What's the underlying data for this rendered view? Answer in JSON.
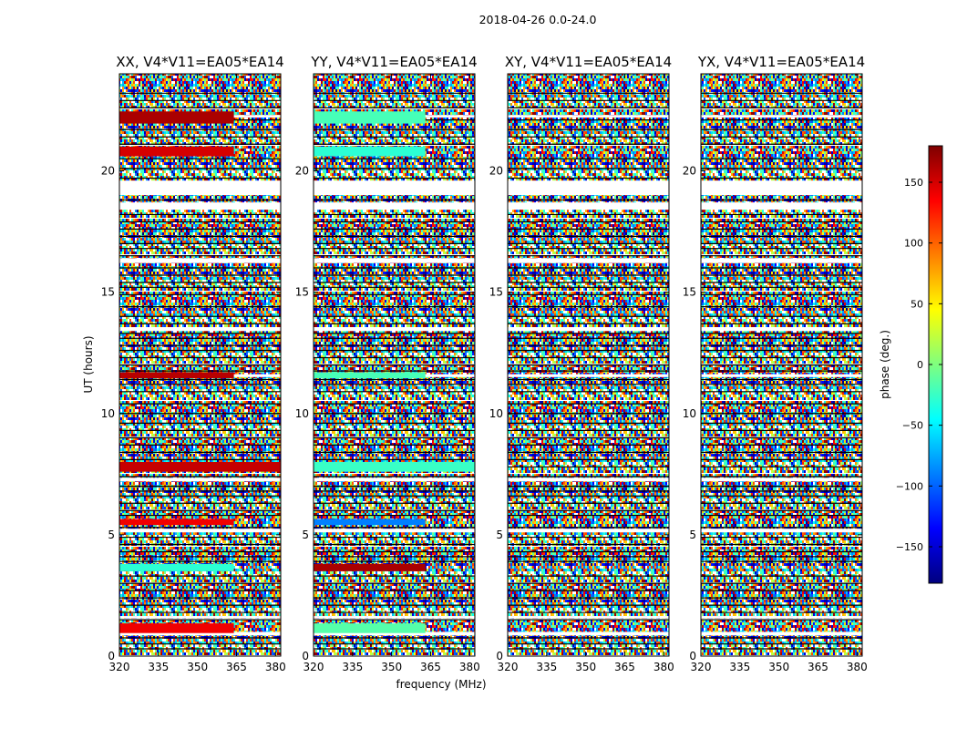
{
  "figure_title": "2018-04-26 0.0-24.0",
  "xlabel": "frequency (MHz)",
  "ylabel": "UT (hours)",
  "colorbar_label": "phase (deg.)",
  "chart_data": {
    "type": "heatmap",
    "title": "2018-04-26 0.0-24.0",
    "xlabel": "frequency (MHz)",
    "ylabel": "UT (hours)",
    "xlim": [
      320,
      382
    ],
    "ylim": [
      0,
      24
    ],
    "xticks": [
      320,
      335,
      350,
      365,
      380
    ],
    "yticks": [
      0,
      5,
      10,
      15,
      20
    ],
    "colorbar": {
      "label": "phase (deg.)",
      "range": [
        -180,
        180
      ],
      "ticks": [
        150,
        100,
        50,
        0,
        -50,
        -100,
        -150
      ],
      "tick_labels": [
        "150",
        "100",
        "50",
        "0",
        "−50",
        "−100",
        "−150"
      ],
      "colormap": "jet",
      "colors": [
        "#00007f",
        "#0000ff",
        "#007fff",
        "#00ffff",
        "#7fff7f",
        "#ffff00",
        "#ff7f00",
        "#ff0000",
        "#7f0000"
      ]
    },
    "panels": [
      {
        "title": "XX, V4*V11=EA05*EA14",
        "coherent_bands": [
          {
            "t0": 0.95,
            "t1": 1.35,
            "phase": 140,
            "f_end": 364
          },
          {
            "t0": 3.5,
            "t1": 3.8,
            "phase": -30,
            "f_end": 364
          },
          {
            "t0": 5.4,
            "t1": 5.65,
            "phase": 140,
            "f_end": 364
          },
          {
            "t0": 7.6,
            "t1": 8.0,
            "phase": 155,
            "f_end": 382
          },
          {
            "t0": 11.45,
            "t1": 11.7,
            "phase": 160,
            "f_end": 364
          },
          {
            "t0": 20.6,
            "t1": 21.0,
            "phase": 150,
            "f_end": 364
          },
          {
            "t0": 21.95,
            "t1": 22.45,
            "phase": 165,
            "f_end": 364
          }
        ]
      },
      {
        "title": "YY, V4*V11=EA05*EA14",
        "coherent_bands": [
          {
            "t0": 0.95,
            "t1": 1.35,
            "phase": -15,
            "f_end": 363
          },
          {
            "t0": 3.5,
            "t1": 3.8,
            "phase": 165,
            "f_end": 363
          },
          {
            "t0": 5.4,
            "t1": 5.65,
            "phase": -90,
            "f_end": 363
          },
          {
            "t0": 7.6,
            "t1": 8.0,
            "phase": -25,
            "f_end": 382
          },
          {
            "t0": 11.45,
            "t1": 11.7,
            "phase": -20,
            "f_end": 363
          },
          {
            "t0": 20.6,
            "t1": 21.0,
            "phase": -30,
            "f_end": 363
          },
          {
            "t0": 21.95,
            "t1": 22.45,
            "phase": -20,
            "f_end": 363
          }
        ]
      },
      {
        "title": "XY, V4*V11=EA05*EA14",
        "coherent_bands": []
      },
      {
        "title": "YX, V4*V11=EA05*EA14",
        "coherent_bands": []
      }
    ],
    "flagged_time_ranges": [
      [
        0.85,
        1.0
      ],
      [
        1.55,
        1.65
      ],
      [
        18.4,
        18.7
      ],
      [
        19.0,
        19.6
      ],
      [
        16.2,
        16.4
      ],
      [
        13.4,
        13.55
      ],
      [
        11.5,
        11.62
      ],
      [
        7.2,
        7.35
      ],
      [
        5.1,
        5.25
      ],
      [
        22.2,
        22.3
      ]
    ],
    "row_boundaries": [
      0.3,
      0.5,
      0.75,
      1.5,
      1.8,
      2.1,
      2.4,
      2.7,
      3.0,
      3.3,
      3.9,
      4.1,
      4.3,
      4.6,
      4.9,
      5.3,
      5.8,
      6.0,
      6.3,
      6.6,
      6.8,
      7.0,
      7.4,
      7.8,
      8.1,
      8.4,
      8.7,
      9.0,
      9.3,
      9.6,
      10.0,
      10.4,
      10.9,
      11.2,
      11.4,
      11.75,
      12.0,
      12.3,
      12.6,
      12.8,
      13.1,
      13.3,
      13.7,
      14.0,
      14.4,
      14.9,
      15.2,
      15.4,
      15.7,
      16.0,
      16.5,
      16.8,
      17.0,
      17.3,
      17.6,
      17.9,
      18.2,
      18.8,
      19.7,
      20.1,
      20.5,
      21.1,
      21.4,
      21.7,
      22.1,
      22.6,
      22.9,
      23.2
    ]
  }
}
